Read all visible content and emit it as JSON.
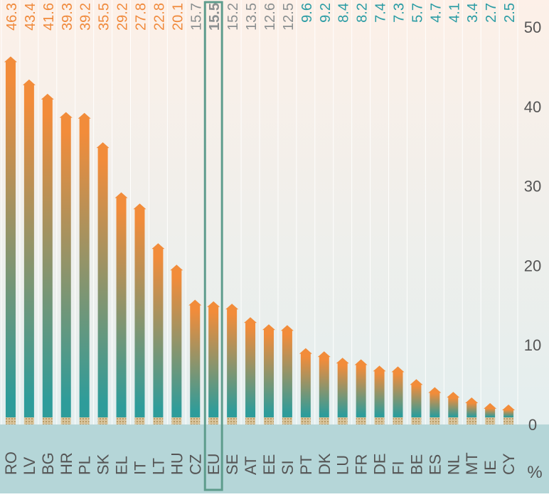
{
  "chart_data": {
    "type": "bar",
    "categories": [
      "RO",
      "LV",
      "BG",
      "HR",
      "PL",
      "SK",
      "EL",
      "IT",
      "LT",
      "HU",
      "CZ",
      "EU",
      "SE",
      "AT",
      "EE",
      "SI",
      "PT",
      "DK",
      "LU",
      "FR",
      "DE",
      "FI",
      "BE",
      "ES",
      "NL",
      "MT",
      "IE",
      "CY"
    ],
    "values": [
      46.3,
      43.4,
      41.6,
      39.3,
      39.2,
      35.5,
      29.2,
      27.8,
      22.8,
      20.1,
      15.7,
      15.5,
      15.2,
      13.5,
      12.6,
      12.5,
      9.6,
      9.2,
      8.4,
      8.2,
      7.4,
      7.3,
      5.7,
      4.7,
      4.1,
      3.4,
      2.7,
      2.5
    ],
    "value_labels": [
      "46.3",
      "43.4",
      "41.6",
      "39.3",
      "39.2",
      "35.5",
      "29.2",
      "27.8",
      "22.8",
      "20.1",
      "15.7",
      "15.5",
      "15.2",
      "13.5",
      "12.6",
      "12.5",
      "9.6",
      "9.2",
      "8.4",
      "8.2",
      "7.4",
      "7.3",
      "5.7",
      "4.7",
      "4.1",
      "3.4",
      "2.7",
      "2.5"
    ],
    "highlight": "EU",
    "ylim": [
      0,
      50
    ],
    "yticks": [
      "0",
      "10",
      "20",
      "30",
      "40",
      "50"
    ],
    "ylabel": "%",
    "grid": "vertical separators",
    "colors": {
      "bar_top": "#F28C3A",
      "bar_bottom": "#2E9C9A",
      "label_high": "#F08A3C",
      "label_mid": "#8A8F90",
      "label_low": "#2A9CA4",
      "highlight_box": "#5E9C8C",
      "tick_text": "#555555",
      "background_top": "#FDF0E8",
      "background_bottom": "#E3EEEE",
      "axis_band": "#B5D6D8"
    }
  }
}
